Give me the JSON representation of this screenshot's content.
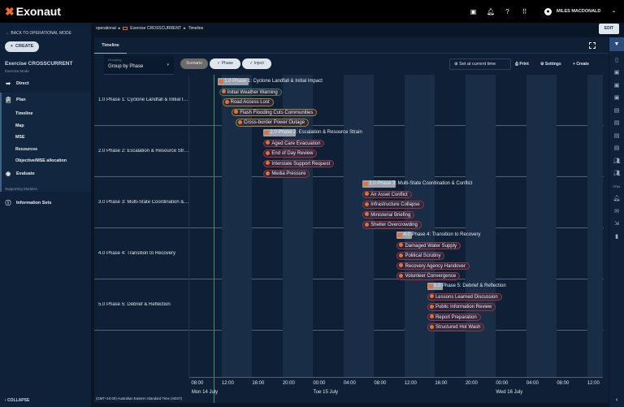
{
  "app": {
    "name": "Exonaut",
    "brand_color": "#f26b21"
  },
  "topbar": {
    "icons": [
      "chat-icon",
      "bell-icon",
      "help-icon",
      "apps-grid-icon"
    ],
    "user": "MILES MACDONALD"
  },
  "sidebar": {
    "back": "BACK TO OPERATIONAL MODE",
    "create": "CREATE",
    "exercise_title": "Exercise CROSSCURRENT",
    "exercise_mode": "Exercise Mode",
    "direct": "Direct",
    "plan": "Plan",
    "plan_items": [
      "Timeline",
      "Map",
      "MSE",
      "Resources",
      "Objective/MSE allocation"
    ],
    "evaluate": "Evaluate",
    "supporting": "Supporting Modules",
    "information_sets": "Information Sets",
    "collapse": "COLLAPSE"
  },
  "breadcrumb": [
    "operational",
    "Exercise CROSSCURRENT",
    "Timeline"
  ],
  "edit": "EDIT",
  "tabs": [
    "Timeline"
  ],
  "toolbar": {
    "grouping_label": "Grouping",
    "grouping_value": "Group by Phase",
    "chips": [
      {
        "label": "Scenario",
        "checked": false
      },
      {
        "label": "Phase",
        "checked": true
      },
      {
        "label": "Inject",
        "checked": true
      }
    ],
    "set_current": "Set at current time",
    "print": "Print",
    "settings": "Settings",
    "create": "Create"
  },
  "timeline": {
    "current_time": "14 Jul 11:00",
    "ticks": [
      "08:00",
      "12:00",
      "16:00",
      "20:00",
      "00:00",
      "04:00",
      "08:00",
      "12:00",
      "16:00",
      "20:00",
      "00:00",
      "04:00",
      "08:00",
      "12:00"
    ],
    "days": [
      "Mon 14 July",
      "Tue 15 July",
      "Wed 16 July"
    ],
    "timezone": "(GMT+10:00) Australian Eastern Standard Time (AEST)",
    "phases": [
      {
        "label": "1.0 Phase 1: Cyclone Landfall & Initial Impact",
        "start": "14 Jul 11:30",
        "hours": 4,
        "events": [
          {
            "label": "Initial Weather Warning",
            "start": "14 Jul 11:40",
            "color": "#1f8a70"
          },
          {
            "label": "Road Access Lost",
            "start": "14 Jul 12:05",
            "color": "#9a8a30"
          },
          {
            "label": "Flash Flooding Cuts Communities",
            "start": "14 Jul 13:20",
            "color": "#9a8a30"
          },
          {
            "label": "Cross-border Power Outage",
            "start": "14 Jul 13:50",
            "color": "#9a8a30"
          }
        ]
      },
      {
        "label": "2.0 Phase 2: Escalation & Resource Strain",
        "start": "14 Jul 17:30",
        "hours": 4.2,
        "events": [
          {
            "label": "Aged Care Evacuation",
            "start": "14 Jul 17:30",
            "color": "#8a3a4a"
          },
          {
            "label": "End of Day Review",
            "start": "14 Jul 17:30",
            "color": "#8a3a4a"
          },
          {
            "label": "Interstate Support Request",
            "start": "14 Jul 17:30",
            "color": "#8a3a4a"
          },
          {
            "label": "Media Pressure",
            "start": "14 Jul 17:30",
            "color": "#8a3a4a"
          }
        ]
      },
      {
        "label": "3.0 Phase 3: Multi-State Coordination & Conflict",
        "start": "15 Jul 06:30",
        "hours": 4.3,
        "events": [
          {
            "label": "Air Asset Conflict",
            "start": "15 Jul 06:30",
            "color": "#8a3a4a"
          },
          {
            "label": "Infrastructure Collapse",
            "start": "15 Jul 06:30",
            "color": "#8a3a4a"
          },
          {
            "label": "Ministerial Briefing",
            "start": "15 Jul 06:30",
            "color": "#8a3a4a"
          },
          {
            "label": "Shelter Overcrowding",
            "start": "15 Jul 06:30",
            "color": "#8a3a4a"
          }
        ]
      },
      {
        "label": "4.0 Phase 4: Transition to Recovery",
        "start": "15 Jul 11:00",
        "hours": 2,
        "events": [
          {
            "label": "Damaged Water Supply",
            "start": "15 Jul 11:00",
            "color": "#8a3a4a"
          },
          {
            "label": "Political Scrutiny",
            "start": "15 Jul 11:00",
            "color": "#8a3a4a"
          },
          {
            "label": "Recovery Agency Handover",
            "start": "15 Jul 11:00",
            "color": "#8a3a4a"
          },
          {
            "label": "Volunteer Convergence",
            "start": "15 Jul 11:00",
            "color": "#8a3a4a"
          }
        ]
      },
      {
        "label": "5.0 Phase 5: Debrief & Reflection",
        "start": "15 Jul 15:00",
        "hours": 2,
        "events": [
          {
            "label": "Lessons Learned Discussion",
            "start": "15 Jul 15:00",
            "color": "#8a3a4a"
          },
          {
            "label": "Public Information Review",
            "start": "15 Jul 15:00",
            "color": "#8a3a4a"
          },
          {
            "label": "Report Preparation",
            "start": "15 Jul 15:00",
            "color": "#8a3a4a"
          },
          {
            "label": "Structured Hot Wash",
            "start": "15 Jul 15:00",
            "color": "#8a3a4a"
          }
        ]
      }
    ]
  },
  "rail": [
    "filter-icon",
    "document-icon",
    "media-icon",
    "media-icon",
    "media-icon",
    "archive-icon",
    "archive-icon",
    "archive-icon",
    "archive-icon",
    "group-icon",
    "group-icon",
    "html-icon",
    "bell-icon",
    "mail-icon",
    "export-icon",
    "book-icon"
  ],
  "rail_html_label": "HTML"
}
